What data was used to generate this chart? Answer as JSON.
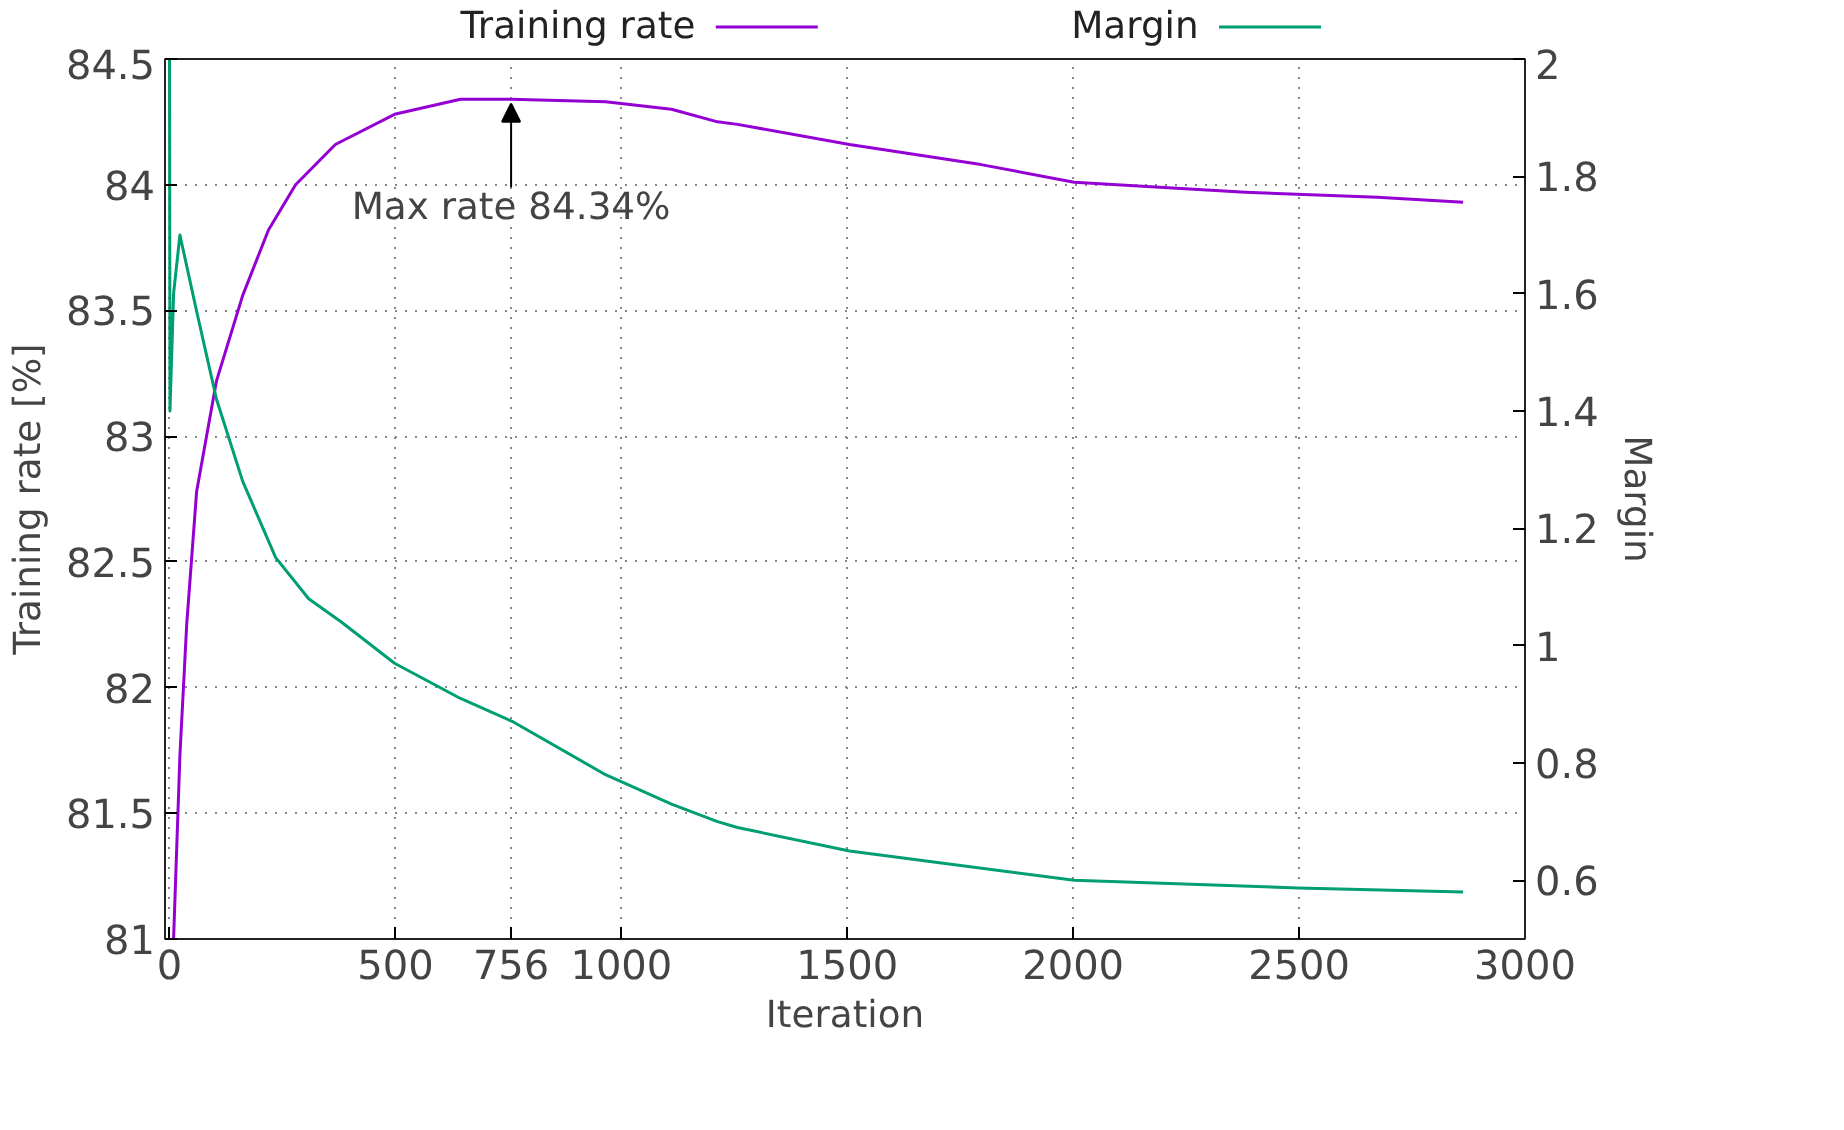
{
  "chart_data": {
    "type": "line",
    "xlabel": "Iteration",
    "ylabel": "Training rate [%]",
    "y2label": "Margin",
    "xlim": [
      -10,
      3000
    ],
    "xticks": [
      0,
      500,
      {
        "value": 756,
        "label": "756"
      },
      1000,
      1500,
      2000,
      2500,
      3000
    ],
    "ylim": [
      81,
      84.5
    ],
    "yticks": [
      81,
      81.5,
      82,
      82.5,
      83,
      83.5,
      84,
      84.5
    ],
    "y2lim": [
      0.5,
      2
    ],
    "y2ticks": [
      0.6,
      0.8,
      1,
      1.2,
      1.4,
      1.6,
      1.8,
      2
    ],
    "grid": true,
    "legend": "top",
    "line_style": "solid",
    "annotations": [
      {
        "text": "Max rate 84.34%",
        "x": 756,
        "y": 84.34
      }
    ],
    "series": [
      {
        "name": "Training rate",
        "color": "#9400d3",
        "x": [
          9,
          23,
          38,
          60,
          104,
          162,
          219,
          279,
          367,
          498,
          644,
          756,
          965,
          1111,
          1213,
          1257,
          1505,
          1796,
          2002,
          2381,
          2673,
          2863
        ],
        "values": [
          81.0,
          81.73,
          82.25,
          82.78,
          83.22,
          83.56,
          83.82,
          84.0,
          84.16,
          84.28,
          84.34,
          84.34,
          84.33,
          84.3,
          84.25,
          84.24,
          84.16,
          84.08,
          84.01,
          83.97,
          83.95,
          83.93
        ]
      },
      {
        "name": "Margin",
        "color": "#009e73",
        "axis": "y2",
        "x": [
          0,
          1,
          9,
          23,
          60,
          104,
          162,
          235,
          308,
          381,
          498,
          644,
          761,
          965,
          1111,
          1213,
          1257,
          1505,
          2002,
          2498,
          2863
        ],
        "values": [
          2.0,
          1.4,
          1.6,
          1.7,
          1.57,
          1.42,
          1.28,
          1.15,
          1.08,
          1.04,
          0.97,
          0.91,
          0.87,
          0.78,
          0.73,
          0.7,
          0.69,
          0.65,
          0.6,
          0.587,
          0.58
        ]
      }
    ]
  }
}
